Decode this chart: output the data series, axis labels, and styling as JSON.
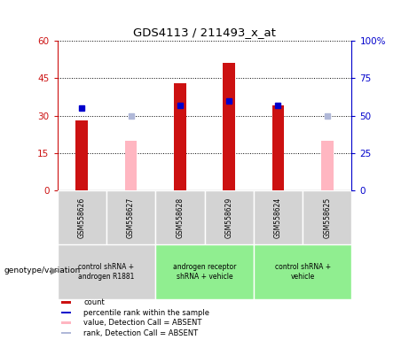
{
  "title": "GDS4113 / 211493_x_at",
  "samples": [
    "GSM558626",
    "GSM558627",
    "GSM558628",
    "GSM558629",
    "GSM558624",
    "GSM558625"
  ],
  "count_values": [
    28,
    null,
    43,
    51,
    34,
    null
  ],
  "count_absent_values": [
    null,
    20,
    null,
    null,
    null,
    20
  ],
  "percentile_values": [
    55,
    null,
    57,
    60,
    57,
    null
  ],
  "percentile_absent_values": [
    null,
    50,
    null,
    null,
    null,
    50
  ],
  "left_ylim": [
    0,
    60
  ],
  "right_ylim": [
    0,
    100
  ],
  "left_yticks": [
    0,
    15,
    30,
    45,
    60
  ],
  "right_yticks": [
    0,
    25,
    50,
    75,
    100
  ],
  "left_yticklabels": [
    "0",
    "15",
    "30",
    "45",
    "60"
  ],
  "right_yticklabels": [
    "0",
    "25",
    "50",
    "75",
    "100%"
  ],
  "bar_width": 0.25,
  "count_color": "#cc1111",
  "absent_count_color": "#ffb6c1",
  "percentile_color": "#0000cc",
  "absent_percentile_color": "#b0b8d8",
  "group_defs": [
    {
      "start": 0,
      "end": 1,
      "color": "#d3d3d3",
      "label": "control shRNA +\nandrogen R1881"
    },
    {
      "start": 2,
      "end": 3,
      "color": "#90ee90",
      "label": "androgen receptor\nshRNA + vehicle"
    },
    {
      "start": 4,
      "end": 5,
      "color": "#90ee90",
      "label": "control shRNA +\nvehicle"
    }
  ],
  "legend_items": [
    {
      "color": "#cc1111",
      "label": "count"
    },
    {
      "color": "#0000cc",
      "label": "percentile rank within the sample"
    },
    {
      "color": "#ffb6c1",
      "label": "value, Detection Call = ABSENT"
    },
    {
      "color": "#b0b8d8",
      "label": "rank, Detection Call = ABSENT"
    }
  ]
}
